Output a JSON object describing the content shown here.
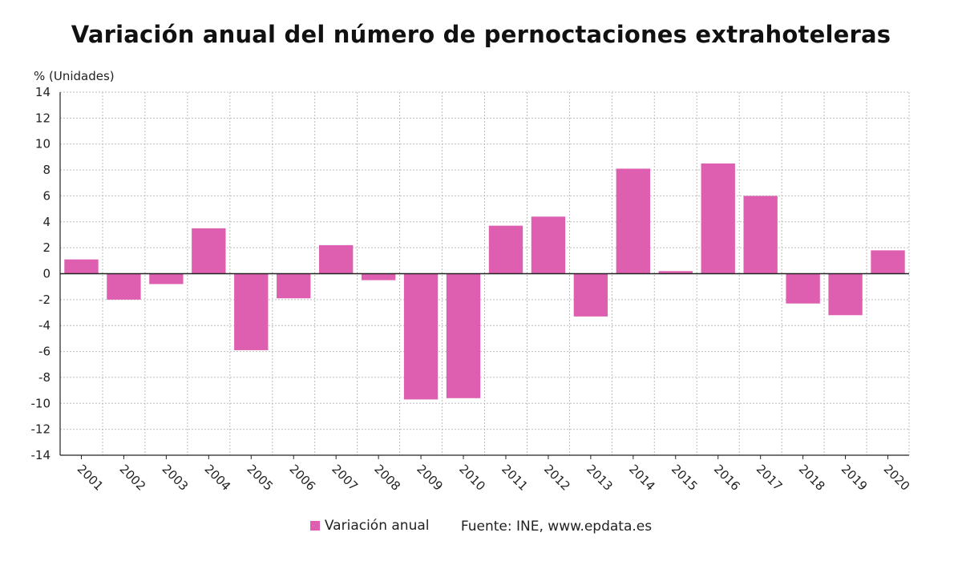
{
  "chart_data": {
    "type": "bar",
    "title": "Variación anual del número de pernoctaciones extrahoteleras",
    "ylabel": "% (Unidades)",
    "xlabel": "",
    "categories": [
      "2001",
      "2002",
      "2003",
      "2004",
      "2005",
      "2006",
      "2007",
      "2008",
      "2009",
      "2010",
      "2011",
      "2012",
      "2013",
      "2014",
      "2015",
      "2016",
      "2017",
      "2018",
      "2019",
      "2020"
    ],
    "series": [
      {
        "name": "Variación anual",
        "color": "#de5fb0",
        "values": [
          1.1,
          -2.0,
          -0.8,
          3.5,
          -5.9,
          -1.9,
          2.2,
          -0.5,
          -9.7,
          -9.6,
          3.7,
          4.4,
          -3.3,
          8.1,
          0.2,
          8.5,
          6.0,
          -2.3,
          -3.2,
          1.8
        ]
      }
    ],
    "ylim": [
      -14,
      14
    ],
    "yticks": [
      14,
      12,
      10,
      8,
      6,
      4,
      2,
      0,
      -2,
      -4,
      -6,
      -8,
      -10,
      -12,
      -14
    ],
    "grid": true,
    "legend_position": "bottom-center"
  },
  "source_note": "Fuente: INE, www.epdata.es"
}
